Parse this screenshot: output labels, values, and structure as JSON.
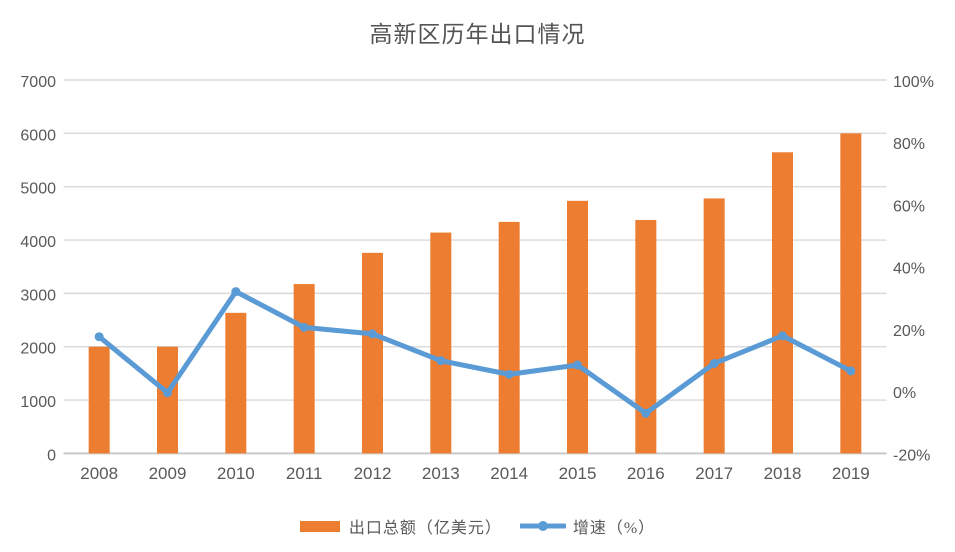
{
  "chart_data": {
    "type": "combo",
    "title": "高新区历年出口情况",
    "categories": [
      "2008",
      "2009",
      "2010",
      "2011",
      "2012",
      "2013",
      "2014",
      "2015",
      "2016",
      "2017",
      "2018",
      "2019"
    ],
    "series": [
      {
        "name": "出口总额（亿美元）",
        "type": "bar",
        "axis": "left",
        "color": "#ED7D31",
        "values": [
          2000,
          2000,
          2635,
          3175,
          3760,
          4140,
          4340,
          4735,
          4375,
          4780,
          5645,
          6000
        ]
      },
      {
        "name": "增速（%）",
        "type": "line",
        "axis": "right",
        "color": "#5B9BD5",
        "values": [
          17.5,
          -0.5,
          32.0,
          20.5,
          18.4,
          9.8,
          5.4,
          8.4,
          -7.1,
          8.9,
          17.8,
          6.5
        ]
      }
    ],
    "left_axis": {
      "min": 0,
      "max": 7000,
      "step": 1000,
      "labels": [
        "7000",
        "6000",
        "5000",
        "4000",
        "3000",
        "2000",
        "1000",
        "0"
      ]
    },
    "right_axis": {
      "min": -20,
      "max": 100,
      "step": 20,
      "labels": [
        "100%",
        "80%",
        "60%",
        "40%",
        "20%",
        "0%",
        "-20%"
      ]
    },
    "grid": true,
    "legend_position": "bottom",
    "colors": {
      "gridline": "#D9D9D9",
      "axis_line": "#C9C9C9",
      "tick_text": "#595959",
      "title_text": "#545454"
    }
  }
}
